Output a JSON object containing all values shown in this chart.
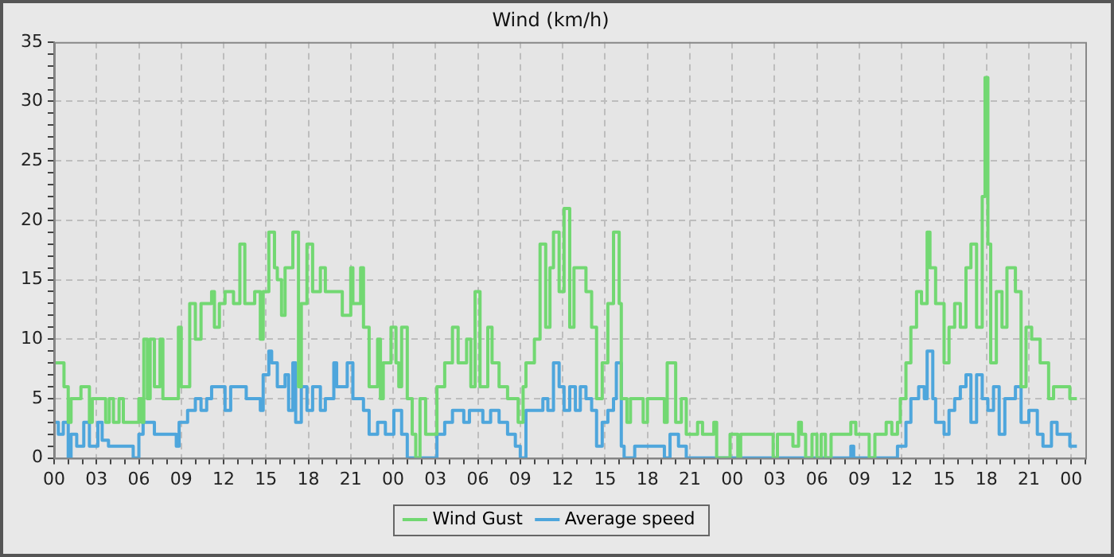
{
  "chart_data": {
    "type": "step",
    "title": "Wind (km/h)",
    "legend": "bottom",
    "grid": true,
    "line_style": "solid",
    "marker": "none",
    "xlim": [
      0,
      73
    ],
    "xticks": [
      {
        "value": 0,
        "label": "00"
      },
      {
        "value": 3,
        "label": "03"
      },
      {
        "value": 6,
        "label": "06"
      },
      {
        "value": 9,
        "label": "09"
      },
      {
        "value": 12,
        "label": "12"
      },
      {
        "value": 15,
        "label": "15"
      },
      {
        "value": 18,
        "label": "18"
      },
      {
        "value": 21,
        "label": "21"
      },
      {
        "value": 24,
        "label": "00"
      },
      {
        "value": 27,
        "label": "03"
      },
      {
        "value": 30,
        "label": "06"
      },
      {
        "value": 33,
        "label": "09"
      },
      {
        "value": 36,
        "label": "12"
      },
      {
        "value": 39,
        "label": "15"
      },
      {
        "value": 42,
        "label": "18"
      },
      {
        "value": 45,
        "label": "21"
      },
      {
        "value": 48,
        "label": "00"
      },
      {
        "value": 51,
        "label": "03"
      },
      {
        "value": 54,
        "label": "06"
      },
      {
        "value": 57,
        "label": "09"
      },
      {
        "value": 60,
        "label": "12"
      },
      {
        "value": 63,
        "label": "15"
      },
      {
        "value": 66,
        "label": "18"
      },
      {
        "value": 69,
        "label": "21"
      },
      {
        "value": 72,
        "label": "00"
      }
    ],
    "ylim": [
      0,
      35
    ],
    "yticks": [
      0,
      5,
      10,
      15,
      20,
      25,
      30,
      35
    ],
    "series": [
      {
        "name": "Wind Gust",
        "color": "#72d872",
        "x": [
          0,
          0.7,
          1.0,
          1.2,
          1.9,
          2.5,
          2.7,
          3.65,
          3.9,
          4.2,
          4.6,
          4.9,
          6.0,
          6.2,
          6.35,
          6.6,
          6.8,
          7.1,
          7.5,
          7.7,
          8.8,
          9.0,
          9.6,
          10.0,
          10.4,
          11.15,
          11.35,
          11.7,
          12.1,
          12.7,
          13.15,
          13.5,
          14.2,
          14.6,
          14.8,
          15.2,
          15.6,
          15.8,
          16.1,
          16.35,
          16.9,
          17.3,
          17.5,
          17.9,
          18.3,
          18.85,
          19.2,
          20.4,
          21.0,
          21.15,
          21.7,
          21.9,
          22.3,
          22.9,
          23.1,
          23.3,
          23.85,
          24.2,
          24.4,
          24.6,
          25.0,
          25.35,
          25.6,
          25.9,
          26.3,
          27.1,
          27.65,
          28.2,
          28.6,
          29.2,
          29.5,
          29.8,
          30.15,
          30.7,
          31.0,
          31.5,
          32.1,
          32.85,
          33.2,
          33.4,
          34.0,
          34.4,
          34.8,
          35.1,
          35.35,
          35.75,
          36.1,
          36.5,
          36.8,
          37.65,
          38.05,
          38.4,
          38.8,
          39.2,
          39.6,
          40.0,
          40.15,
          40.55,
          40.8,
          41.7,
          42.0,
          43.2,
          43.4,
          44.0,
          44.4,
          44.75,
          45.55,
          45.9,
          46.7,
          46.9,
          47.85,
          48.4,
          48.6,
          50.9,
          51.2,
          52.3,
          52.7,
          52.9,
          53.2,
          53.65,
          54.0,
          54.3,
          54.6,
          55.0,
          56.4,
          56.75,
          57.7,
          58.1,
          58.9,
          59.3,
          59.7,
          59.9,
          60.3,
          60.65,
          61.05,
          61.4,
          61.8,
          62.0,
          62.4,
          63.0,
          63.35,
          63.75,
          64.15,
          64.55,
          64.9,
          65.3,
          65.7,
          65.9,
          66.1,
          66.3,
          66.7,
          67.1,
          67.45,
          68.05,
          68.45,
          68.8,
          69.2,
          69.8,
          70.4,
          70.75,
          71.9,
          72.4
        ],
        "values": [
          8,
          6,
          3,
          5,
          6,
          3,
          5,
          3,
          5,
          3,
          5,
          3,
          5,
          3,
          10,
          5,
          10,
          6,
          10,
          5,
          11,
          6,
          13,
          10,
          13,
          14,
          11,
          13,
          14,
          13,
          18,
          13,
          14,
          10,
          14,
          19,
          16,
          15,
          12,
          16,
          19,
          6,
          13,
          18,
          14,
          16,
          14,
          12,
          16,
          13,
          16,
          11,
          6,
          10,
          5,
          8,
          11,
          8,
          6,
          11,
          5,
          2,
          0,
          5,
          2,
          6,
          8,
          11,
          8,
          10,
          6,
          14,
          6,
          11,
          8,
          6,
          5,
          3,
          6,
          8,
          10,
          18,
          11,
          16,
          19,
          14,
          21,
          11,
          16,
          14,
          11,
          5,
          8,
          13,
          19,
          13,
          5,
          3,
          5,
          3,
          5,
          3,
          8,
          3,
          5,
          2,
          3,
          2,
          3,
          0,
          2,
          0,
          2,
          0,
          2,
          1,
          3,
          2,
          0,
          2,
          0,
          2,
          0,
          2,
          3,
          2,
          0,
          2,
          3,
          2,
          3,
          5,
          8,
          11,
          14,
          13,
          19,
          16,
          13,
          8,
          11,
          13,
          11,
          16,
          18,
          11,
          22,
          32,
          18,
          8,
          14,
          11,
          16,
          14,
          6,
          11,
          10,
          8,
          5,
          6,
          5,
          5
        ]
      },
      {
        "name": "Average speed",
        "color": "#4ea6dc",
        "x": [
          0,
          0.3,
          0.65,
          1.0,
          1.2,
          1.6,
          2.1,
          2.5,
          3.1,
          3.4,
          3.85,
          5.6,
          6.0,
          6.3,
          7.1,
          8.65,
          8.85,
          9.45,
          10.0,
          10.4,
          10.8,
          11.15,
          12.1,
          12.5,
          13.6,
          14.6,
          14.8,
          15.2,
          15.4,
          15.8,
          16.35,
          16.6,
          16.9,
          17.1,
          17.5,
          17.9,
          18.3,
          18.85,
          19.2,
          19.8,
          20.0,
          20.75,
          21.15,
          21.9,
          22.3,
          22.9,
          23.45,
          24.05,
          24.6,
          25.0,
          27.1,
          27.65,
          28.2,
          29.0,
          29.4,
          30.35,
          30.9,
          31.5,
          32.1,
          32.65,
          33.0,
          33.4,
          34.6,
          34.95,
          35.35,
          35.75,
          36.1,
          36.5,
          36.9,
          37.25,
          37.65,
          38.05,
          38.4,
          38.8,
          39.2,
          39.6,
          39.8,
          40.15,
          40.35,
          41.1,
          43.2,
          43.6,
          44.2,
          44.75,
          56.4,
          56.6,
          59.7,
          60.3,
          60.65,
          61.2,
          61.6,
          61.8,
          62.2,
          62.4,
          63.0,
          63.35,
          63.75,
          64.15,
          64.55,
          64.9,
          65.3,
          65.7,
          66.1,
          66.5,
          66.9,
          67.3,
          68.05,
          68.45,
          69.0,
          69.6,
          70.0,
          70.6,
          71.0,
          71.9,
          72.4
        ],
        "values": [
          3,
          2,
          3,
          0,
          2,
          1,
          3,
          1,
          3,
          1.5,
          1,
          0,
          2,
          3,
          2,
          1,
          3,
          4,
          5,
          4,
          5,
          6,
          4,
          6,
          5,
          4,
          7,
          9,
          8,
          6,
          7,
          4,
          8,
          3,
          6,
          4,
          6,
          4,
          5,
          8,
          6,
          8,
          5,
          4,
          2,
          3,
          2,
          4,
          2,
          0,
          2,
          3,
          4,
          3,
          4,
          3,
          4,
          3,
          2,
          1,
          0,
          4,
          5,
          4,
          8,
          6,
          4,
          6,
          4,
          6,
          5,
          4,
          1,
          3,
          4,
          5,
          8,
          1,
          0,
          1,
          0,
          2,
          1,
          0,
          1,
          0,
          1,
          3,
          5,
          6,
          5,
          9,
          5,
          3,
          2,
          4,
          5,
          6,
          7,
          3,
          7,
          5,
          4,
          6,
          2,
          5,
          6,
          3,
          4,
          2,
          1,
          3,
          2,
          1,
          1
        ]
      }
    ]
  }
}
